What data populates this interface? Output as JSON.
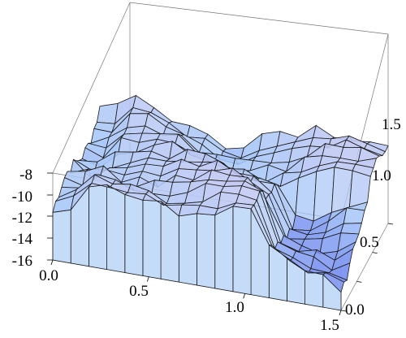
{
  "chart_data": {
    "type": "surface3d",
    "title": "",
    "xlabel": "",
    "ylabel": "",
    "zlabel": "",
    "grid": false,
    "legend": "none",
    "xlim": [
      0,
      1.5
    ],
    "ylim": [
      0,
      1.5
    ],
    "zlim": [
      -16,
      -8
    ],
    "x_ticks": [
      "0.0",
      "0.5",
      "1.0",
      "1.5"
    ],
    "y_ticks": [
      "0.0",
      "0.5",
      "1.0",
      "1.5"
    ],
    "z_ticks": [
      "-8",
      "-10",
      "-12",
      "-14",
      "-16"
    ],
    "colors": {
      "surface_low": "#4a5ae8",
      "surface_mid": "#a8c8f8",
      "surface_high": "#f4c8e8",
      "mesh": "#1a1a1a",
      "box": "#777777"
    }
  }
}
